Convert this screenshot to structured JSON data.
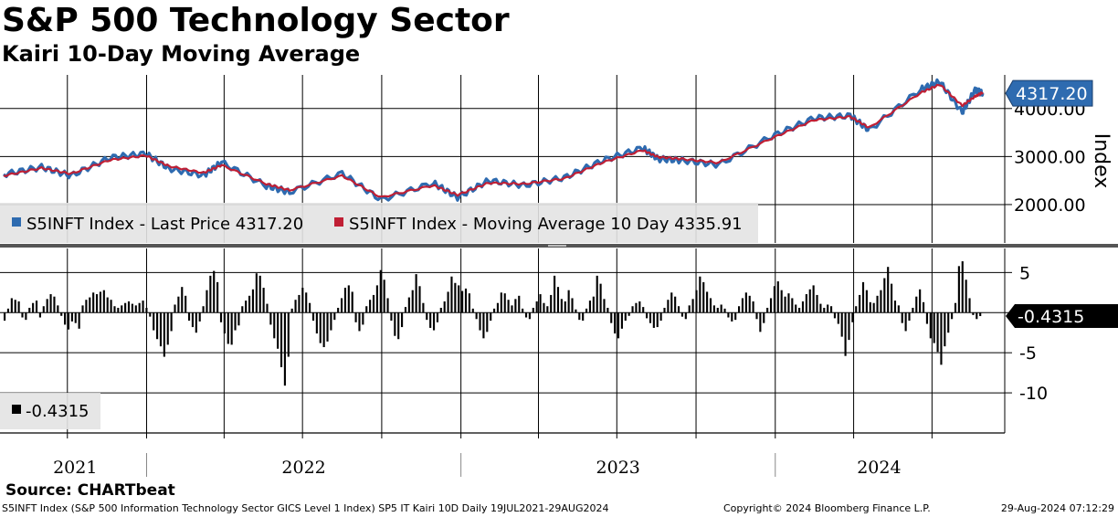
{
  "title": "S&P 500 Technology Sector",
  "subtitle": "Kairi 10-Day Moving Average",
  "source": "Source: CHARTbeat",
  "footer": {
    "left": "S5INFT Index (S&P 500 Information Technology Sector GICS Level 1 Index) SP5 IT Kairi 10D  Daily 19JUL2021-29AUG2024",
    "copyright": "Copyright© 2024 Bloomberg Finance L.P.",
    "timestamp": "29-Aug-2024 07:12:29"
  },
  "chart_data": [
    {
      "type": "line",
      "ylabel": "Index",
      "ylim": [
        1200,
        4700
      ],
      "yticks": [
        2000,
        3000,
        4000
      ],
      "ytick_labels": [
        "2000.00",
        "3000.00",
        "4000.00"
      ],
      "grid": true,
      "legend_position": "bottom-left",
      "x_range": [
        "2021-07-19",
        "2024-08-29"
      ],
      "x_years": [
        "2021",
        "2022",
        "2023",
        "2024"
      ],
      "series": [
        {
          "name": "S5INFT Index - Last Price 4317.20",
          "color": "#2e6bb0",
          "last_value_label": "4317.20",
          "points": [
            [
              "2021-07-19",
              2630
            ],
            [
              "2021-09-01",
              2780
            ],
            [
              "2021-10-05",
              2600
            ],
            [
              "2021-11-20",
              2980
            ],
            [
              "2021-12-31",
              3060
            ],
            [
              "2022-01-27",
              2750
            ],
            [
              "2022-03-08",
              2610
            ],
            [
              "2022-03-29",
              2880
            ],
            [
              "2022-05-20",
              2390
            ],
            [
              "2022-06-16",
              2260
            ],
            [
              "2022-08-16",
              2650
            ],
            [
              "2022-09-30",
              2100
            ],
            [
              "2022-11-30",
              2450
            ],
            [
              "2022-12-28",
              2150
            ],
            [
              "2023-02-02",
              2500
            ],
            [
              "2023-03-15",
              2400
            ],
            [
              "2023-05-01",
              2560
            ],
            [
              "2023-06-15",
              2920
            ],
            [
              "2023-07-31",
              3180
            ],
            [
              "2023-08-18",
              2950
            ],
            [
              "2023-09-15",
              2920
            ],
            [
              "2023-10-27",
              2830
            ],
            [
              "2023-12-28",
              3420
            ],
            [
              "2024-02-15",
              3800
            ],
            [
              "2024-03-28",
              3850
            ],
            [
              "2024-04-19",
              3550
            ],
            [
              "2024-06-18",
              4400
            ],
            [
              "2024-07-10",
              4560
            ],
            [
              "2024-08-05",
              3920
            ],
            [
              "2024-08-20",
              4380
            ],
            [
              "2024-08-29",
              4317.2
            ]
          ]
        },
        {
          "name": "S5INFT Index - Moving Average 10 Day 4335.91",
          "color": "#c01f34",
          "points": [
            [
              "2021-07-19",
              2600
            ],
            [
              "2021-09-01",
              2760
            ],
            [
              "2021-10-05",
              2640
            ],
            [
              "2021-11-20",
              2930
            ],
            [
              "2021-12-31",
              3020
            ],
            [
              "2022-01-27",
              2800
            ],
            [
              "2022-03-08",
              2660
            ],
            [
              "2022-03-29",
              2820
            ],
            [
              "2022-05-20",
              2430
            ],
            [
              "2022-06-16",
              2300
            ],
            [
              "2022-08-16",
              2600
            ],
            [
              "2022-09-30",
              2150
            ],
            [
              "2022-11-30",
              2400
            ],
            [
              "2022-12-28",
              2200
            ],
            [
              "2023-02-02",
              2450
            ],
            [
              "2023-03-15",
              2430
            ],
            [
              "2023-05-01",
              2540
            ],
            [
              "2023-06-15",
              2880
            ],
            [
              "2023-07-31",
              3130
            ],
            [
              "2023-08-18",
              2990
            ],
            [
              "2023-09-15",
              2950
            ],
            [
              "2023-10-27",
              2870
            ],
            [
              "2023-12-28",
              3380
            ],
            [
              "2024-02-15",
              3760
            ],
            [
              "2024-03-28",
              3830
            ],
            [
              "2024-04-19",
              3600
            ],
            [
              "2024-06-18",
              4330
            ],
            [
              "2024-07-10",
              4500
            ],
            [
              "2024-08-05",
              4060
            ],
            [
              "2024-08-20",
              4250
            ],
            [
              "2024-08-29",
              4335.91
            ]
          ]
        }
      ]
    },
    {
      "type": "bar",
      "ylim": [
        -15,
        8
      ],
      "yticks": [
        5,
        0,
        -5,
        -10
      ],
      "ytick_labels": [
        "5",
        "",
        "-5",
        "-10"
      ],
      "grid": true,
      "legend_position": "bottom-left",
      "x_range": [
        "2021-07-19",
        "2024-08-29"
      ],
      "series": [
        {
          "name": "-0.4315",
          "color": "#000000",
          "last_value_label": "-0.4315",
          "values": [
            -1.0,
            0.5,
            1.8,
            1.6,
            1.4,
            -0.6,
            -0.9,
            0.6,
            1.2,
            1.5,
            -0.6,
            0.8,
            1.7,
            2.3,
            2.0,
            0.9,
            -0.4,
            -1.5,
            -2.1,
            -1.1,
            -1.3,
            -2.0,
            0.9,
            1.6,
            1.9,
            2.5,
            2.3,
            2.6,
            2.8,
            1.9,
            1.6,
            0.8,
            0.6,
            0.9,
            1.2,
            1.4,
            1.1,
            0.9,
            1.2,
            1.5,
            0.6,
            -0.5,
            -2.2,
            -3.3,
            -4.2,
            -5.5,
            -4.0,
            -2.3,
            1.0,
            2.0,
            3.2,
            2.1,
            -1.0,
            -1.8,
            -2.5,
            -1.1,
            0.8,
            2.8,
            4.6,
            5.2,
            3.8,
            -1.2,
            -2.6,
            -3.9,
            -4.0,
            -2.2,
            -1.6,
            0.8,
            1.5,
            2.1,
            2.9,
            4.9,
            4.6,
            3.1,
            1.1,
            -1.5,
            -3.2,
            -4.5,
            -6.8,
            -9.1,
            -5.5,
            0.5,
            1.6,
            2.2,
            3.1,
            2.5,
            1.2,
            -1.0,
            -2.6,
            -3.8,
            -4.3,
            -3.6,
            -2.2,
            -0.9,
            0.6,
            1.8,
            3.1,
            3.4,
            2.6,
            -1.2,
            -2.3,
            -1.5,
            0.8,
            1.6,
            2.2,
            3.4,
            5.3,
            4.1,
            1.8,
            -1.0,
            -2.9,
            -3.3,
            -1.8,
            0.7,
            1.9,
            2.8,
            4.8,
            3.3,
            1.2,
            -0.9,
            -1.9,
            -2.2,
            -1.2,
            0.6,
            1.4,
            2.6,
            4.5,
            3.7,
            3.4,
            2.7,
            3.0,
            2.4,
            0.5,
            -0.8,
            -2.2,
            -3.2,
            -2.4,
            -1.0,
            0.5,
            1.2,
            2.5,
            2.4,
            1.6,
            0.9,
            1.7,
            2.1,
            0.5,
            -0.6,
            -0.8,
            0.6,
            1.4,
            2.3,
            1.2,
            0.8,
            2.2,
            4.6,
            3.2,
            1.7,
            1.4,
            2.8,
            1.8,
            0.4,
            -0.9,
            -1.0,
            0.5,
            1.5,
            2.0,
            4.6,
            3.6,
            1.7,
            0.6,
            -1.3,
            -2.6,
            -3.2,
            -2.0,
            -1.0,
            -0.4,
            0.8,
            1.2,
            1.4,
            0.7,
            -0.7,
            -1.3,
            -1.9,
            -1.8,
            -1.0,
            0.6,
            1.6,
            2.5,
            2.0,
            0.8,
            -0.5,
            -0.8,
            0.9,
            1.7,
            2.8,
            4.5,
            3.8,
            2.6,
            1.8,
            0.9,
            0.6,
            1.0,
            0.5,
            -0.6,
            -1.1,
            -0.9,
            0.8,
            1.8,
            2.5,
            2.1,
            1.4,
            -0.8,
            -2.4,
            -1.3,
            0.6,
            1.8,
            3.3,
            3.9,
            2.8,
            2.0,
            2.4,
            1.8,
            1.0,
            0.6,
            1.4,
            2.3,
            2.9,
            3.4,
            2.2,
            1.1,
            0.6,
            1.0,
            0.8,
            -0.7,
            -1.4,
            -3.0,
            -5.4,
            -3.4,
            -1.2,
            0.8,
            2.2,
            3.8,
            2.8,
            1.3,
            1.2,
            2.1,
            2.8,
            4.3,
            5.7,
            3.6,
            1.5,
            0.9,
            -1.3,
            -2.3,
            -1.0,
            0.6,
            2.0,
            2.9,
            1.3,
            -1.4,
            -3.2,
            -3.8,
            -4.9,
            -6.5,
            -4.2,
            -2.5,
            -0.8,
            1.2,
            5.8,
            6.4,
            4.1,
            1.8,
            -0.3,
            -0.8,
            -0.43
          ]
        }
      ]
    }
  ]
}
